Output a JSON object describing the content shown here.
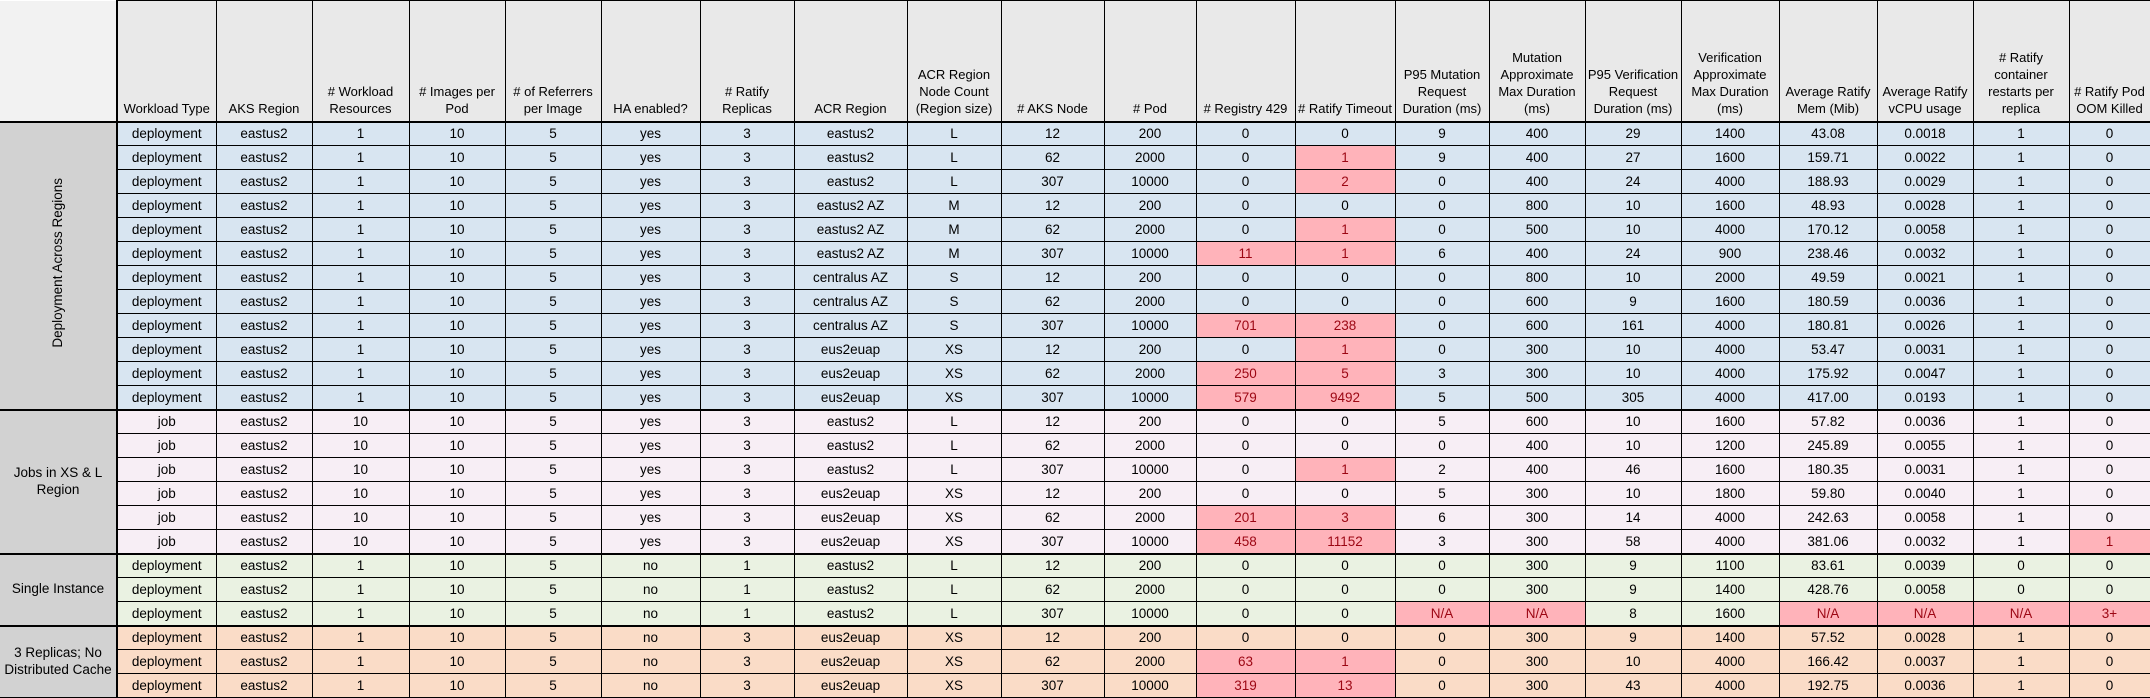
{
  "columns": [
    "Workload Type",
    "AKS Region",
    "# Workload Resources",
    "# Images per Pod",
    "# of Referrers per Image",
    "HA enabled?",
    "# Ratify Replicas",
    "ACR Region",
    "ACR Region Node Count (Region size)",
    "# AKS Node",
    "# Pod",
    "# Registry 429",
    "# Ratify Timeout",
    "P95 Mutation Request Duration (ms)",
    "Mutation Approximate Max Duration (ms)",
    "P95 Verification Request Duration (ms)",
    "Verification Approximate Max Duration (ms)",
    "Average Ratify Mem (Mib)",
    "Average Ratify vCPU usage",
    "# Ratify container restarts per replica",
    "# Ratify Pod OOM Killed"
  ],
  "colors": {
    "group_deployment_across_regions": "#d8e5f1",
    "group_jobs": "#f7eef5",
    "group_single_instance": "#eaf2e2",
    "group_three_replicas": "#fadcc7",
    "alert_fill": "#ffb3ba",
    "alert_text": "#9c0613",
    "header_fill": "#e9e9e9",
    "group_label_fill": "#d2d2d2",
    "corner_fill": "#f2f2f2"
  },
  "groups": [
    {
      "label": "Deployment Across Regions",
      "orientation": "vertical",
      "bg": "#d8e5f1",
      "rows": [
        {
          "cells": [
            "deployment",
            "eastus2",
            "1",
            "10",
            "5",
            "yes",
            "3",
            "eastus2",
            "L",
            "12",
            "200",
            "0",
            "0",
            "9",
            "400",
            "29",
            "1400",
            "43.08",
            "0.0018",
            "1",
            "0"
          ],
          "alerts": []
        },
        {
          "cells": [
            "deployment",
            "eastus2",
            "1",
            "10",
            "5",
            "yes",
            "3",
            "eastus2",
            "L",
            "62",
            "2000",
            "0",
            "1",
            "9",
            "400",
            "27",
            "1600",
            "159.71",
            "0.0022",
            "1",
            "0"
          ],
          "alerts": [
            12
          ]
        },
        {
          "cells": [
            "deployment",
            "eastus2",
            "1",
            "10",
            "5",
            "yes",
            "3",
            "eastus2",
            "L",
            "307",
            "10000",
            "0",
            "2",
            "0",
            "400",
            "24",
            "4000",
            "188.93",
            "0.0029",
            "1",
            "0"
          ],
          "alerts": [
            12
          ]
        },
        {
          "cells": [
            "deployment",
            "eastus2",
            "1",
            "10",
            "5",
            "yes",
            "3",
            "eastus2 AZ",
            "M",
            "12",
            "200",
            "0",
            "0",
            "0",
            "800",
            "10",
            "1600",
            "48.93",
            "0.0028",
            "1",
            "0"
          ],
          "alerts": []
        },
        {
          "cells": [
            "deployment",
            "eastus2",
            "1",
            "10",
            "5",
            "yes",
            "3",
            "eastus2 AZ",
            "M",
            "62",
            "2000",
            "0",
            "1",
            "0",
            "500",
            "10",
            "4000",
            "170.12",
            "0.0058",
            "1",
            "0"
          ],
          "alerts": [
            12
          ]
        },
        {
          "cells": [
            "deployment",
            "eastus2",
            "1",
            "10",
            "5",
            "yes",
            "3",
            "eastus2 AZ",
            "M",
            "307",
            "10000",
            "11",
            "1",
            "6",
            "400",
            "24",
            "900",
            "238.46",
            "0.0032",
            "1",
            "0"
          ],
          "alerts": [
            11,
            12
          ]
        },
        {
          "cells": [
            "deployment",
            "eastus2",
            "1",
            "10",
            "5",
            "yes",
            "3",
            "centralus AZ",
            "S",
            "12",
            "200",
            "0",
            "0",
            "0",
            "800",
            "10",
            "2000",
            "49.59",
            "0.0021",
            "1",
            "0"
          ],
          "alerts": []
        },
        {
          "cells": [
            "deployment",
            "eastus2",
            "1",
            "10",
            "5",
            "yes",
            "3",
            "centralus AZ",
            "S",
            "62",
            "2000",
            "0",
            "0",
            "0",
            "600",
            "9",
            "1600",
            "180.59",
            "0.0036",
            "1",
            "0"
          ],
          "alerts": []
        },
        {
          "cells": [
            "deployment",
            "eastus2",
            "1",
            "10",
            "5",
            "yes",
            "3",
            "centralus AZ",
            "S",
            "307",
            "10000",
            "701",
            "238",
            "0",
            "600",
            "161",
            "4000",
            "180.81",
            "0.0026",
            "1",
            "0"
          ],
          "alerts": [
            11,
            12
          ]
        },
        {
          "cells": [
            "deployment",
            "eastus2",
            "1",
            "10",
            "5",
            "yes",
            "3",
            "eus2euap",
            "XS",
            "12",
            "200",
            "0",
            "1",
            "0",
            "300",
            "10",
            "4000",
            "53.47",
            "0.0031",
            "1",
            "0"
          ],
          "alerts": [
            12
          ]
        },
        {
          "cells": [
            "deployment",
            "eastus2",
            "1",
            "10",
            "5",
            "yes",
            "3",
            "eus2euap",
            "XS",
            "62",
            "2000",
            "250",
            "5",
            "3",
            "300",
            "10",
            "4000",
            "175.92",
            "0.0047",
            "1",
            "0"
          ],
          "alerts": [
            11,
            12
          ]
        },
        {
          "cells": [
            "deployment",
            "eastus2",
            "1",
            "10",
            "5",
            "yes",
            "3",
            "eus2euap",
            "XS",
            "307",
            "10000",
            "579",
            "9492",
            "5",
            "500",
            "305",
            "4000",
            "417.00",
            "0.0193",
            "1",
            "0"
          ],
          "alerts": [
            11,
            12
          ]
        }
      ]
    },
    {
      "label": "Jobs in XS & L Region",
      "orientation": "horizontal",
      "bg": "#f7eef5",
      "rows": [
        {
          "cells": [
            "job",
            "eastus2",
            "10",
            "10",
            "5",
            "yes",
            "3",
            "eastus2",
            "L",
            "12",
            "200",
            "0",
            "0",
            "5",
            "600",
            "10",
            "1600",
            "57.82",
            "0.0036",
            "1",
            "0"
          ],
          "alerts": []
        },
        {
          "cells": [
            "job",
            "eastus2",
            "10",
            "10",
            "5",
            "yes",
            "3",
            "eastus2",
            "L",
            "62",
            "2000",
            "0",
            "0",
            "0",
            "400",
            "10",
            "1200",
            "245.89",
            "0.0055",
            "1",
            "0"
          ],
          "alerts": []
        },
        {
          "cells": [
            "job",
            "eastus2",
            "10",
            "10",
            "5",
            "yes",
            "3",
            "eastus2",
            "L",
            "307",
            "10000",
            "0",
            "1",
            "2",
            "400",
            "46",
            "1600",
            "180.35",
            "0.0031",
            "1",
            "0"
          ],
          "alerts": [
            12
          ]
        },
        {
          "cells": [
            "job",
            "eastus2",
            "10",
            "10",
            "5",
            "yes",
            "3",
            "eus2euap",
            "XS",
            "12",
            "200",
            "0",
            "0",
            "5",
            "300",
            "10",
            "1800",
            "59.80",
            "0.0040",
            "1",
            "0"
          ],
          "alerts": []
        },
        {
          "cells": [
            "job",
            "eastus2",
            "10",
            "10",
            "5",
            "yes",
            "3",
            "eus2euap",
            "XS",
            "62",
            "2000",
            "201",
            "3",
            "6",
            "300",
            "14",
            "4000",
            "242.63",
            "0.0058",
            "1",
            "0"
          ],
          "alerts": [
            11,
            12
          ]
        },
        {
          "cells": [
            "job",
            "eastus2",
            "10",
            "10",
            "5",
            "yes",
            "3",
            "eus2euap",
            "XS",
            "307",
            "10000",
            "458",
            "11152",
            "3",
            "300",
            "58",
            "4000",
            "381.06",
            "0.0032",
            "1",
            "1"
          ],
          "alerts": [
            11,
            12,
            20
          ]
        }
      ]
    },
    {
      "label": "Single Instance",
      "orientation": "horizontal",
      "bg": "#eaf2e2",
      "rows": [
        {
          "cells": [
            "deployment",
            "eastus2",
            "1",
            "10",
            "5",
            "no",
            "1",
            "eastus2",
            "L",
            "12",
            "200",
            "0",
            "0",
            "0",
            "300",
            "9",
            "1100",
            "83.61",
            "0.0039",
            "0",
            "0"
          ],
          "alerts": []
        },
        {
          "cells": [
            "deployment",
            "eastus2",
            "1",
            "10",
            "5",
            "no",
            "1",
            "eastus2",
            "L",
            "62",
            "2000",
            "0",
            "0",
            "0",
            "300",
            "9",
            "1400",
            "428.76",
            "0.0058",
            "0",
            "0"
          ],
          "alerts": []
        },
        {
          "cells": [
            "deployment",
            "eastus2",
            "1",
            "10",
            "5",
            "no",
            "1",
            "eastus2",
            "L",
            "307",
            "10000",
            "0",
            "0",
            "N/A",
            "N/A",
            "8",
            "1600",
            "N/A",
            "N/A",
            "N/A",
            "3+"
          ],
          "alerts": [
            13,
            14,
            17,
            18,
            19,
            20
          ]
        }
      ]
    },
    {
      "label": "3 Replicas; No Distributed Cache",
      "orientation": "horizontal",
      "bg": "#fadcc7",
      "rows": [
        {
          "cells": [
            "deployment",
            "eastus2",
            "1",
            "10",
            "5",
            "no",
            "3",
            "eus2euap",
            "XS",
            "12",
            "200",
            "0",
            "0",
            "0",
            "300",
            "9",
            "1400",
            "57.52",
            "0.0028",
            "1",
            "0"
          ],
          "alerts": []
        },
        {
          "cells": [
            "deployment",
            "eastus2",
            "1",
            "10",
            "5",
            "no",
            "3",
            "eus2euap",
            "XS",
            "62",
            "2000",
            "63",
            "1",
            "0",
            "300",
            "10",
            "4000",
            "166.42",
            "0.0037",
            "1",
            "0"
          ],
          "alerts": [
            11,
            12
          ]
        },
        {
          "cells": [
            "deployment",
            "eastus2",
            "1",
            "10",
            "5",
            "no",
            "3",
            "eus2euap",
            "XS",
            "307",
            "10000",
            "319",
            "13",
            "0",
            "300",
            "43",
            "4000",
            "192.75",
            "0.0036",
            "1",
            "0"
          ],
          "alerts": [
            11,
            12
          ]
        }
      ]
    }
  ]
}
